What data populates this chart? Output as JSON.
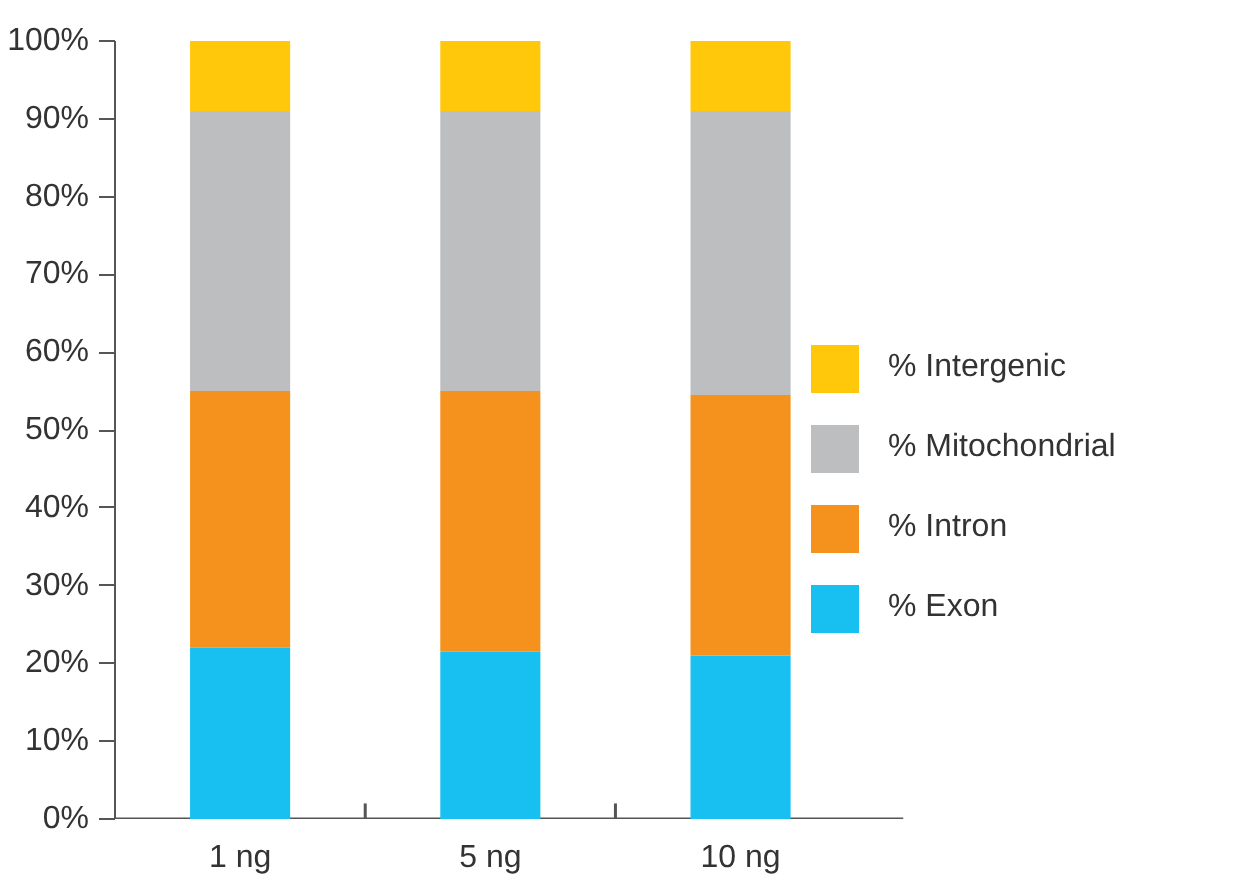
{
  "chart_data": {
    "type": "bar",
    "stacked": true,
    "categories": [
      "1 ng",
      "5 ng",
      "10 ng"
    ],
    "series": [
      {
        "name": "% Exon",
        "color": "#17c0f0",
        "values": [
          22,
          21.5,
          21
        ]
      },
      {
        "name": "% Intron",
        "color": "#f5921e",
        "values": [
          33,
          33.5,
          33.5
        ]
      },
      {
        "name": "% Mitochondrial",
        "color": "#bcbec0",
        "values": [
          36,
          36,
          36.5
        ]
      },
      {
        "name": "% Intergenic",
        "color": "#ffc80b",
        "values": [
          9,
          9,
          9
        ]
      }
    ],
    "ylim": [
      0,
      100
    ],
    "yticks": [
      {
        "value": 0,
        "label": "0%"
      },
      {
        "value": 10,
        "label": "10%"
      },
      {
        "value": 20,
        "label": "20%"
      },
      {
        "value": 30,
        "label": "30%"
      },
      {
        "value": 40,
        "label": "40%"
      },
      {
        "value": 50,
        "label": "50%"
      },
      {
        "value": 60,
        "label": "60%"
      },
      {
        "value": 70,
        "label": "70%"
      },
      {
        "value": 80,
        "label": "80%"
      },
      {
        "value": 90,
        "label": "90%"
      },
      {
        "value": 100,
        "label": "100%"
      }
    ],
    "grid": false,
    "legend": "right"
  }
}
